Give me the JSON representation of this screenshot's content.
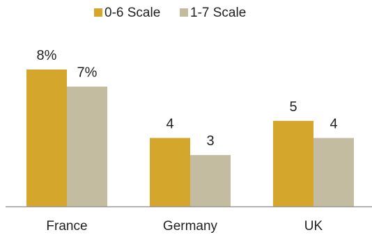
{
  "chart_data": {
    "type": "bar",
    "categories": [
      "France",
      "Germany",
      "UK"
    ],
    "series": [
      {
        "name": "0-6 Scale",
        "values": [
          8,
          4,
          5
        ],
        "labels": [
          "8%",
          "4",
          "5"
        ],
        "color": "#d4a72c"
      },
      {
        "name": "1-7 Scale",
        "values": [
          7,
          3,
          4
        ],
        "labels": [
          "7%",
          "3",
          "4"
        ],
        "color": "#c4bca0"
      }
    ],
    "ylim": [
      0,
      9
    ],
    "grid": false,
    "legend_position": "top",
    "axis_color": "#999999"
  }
}
